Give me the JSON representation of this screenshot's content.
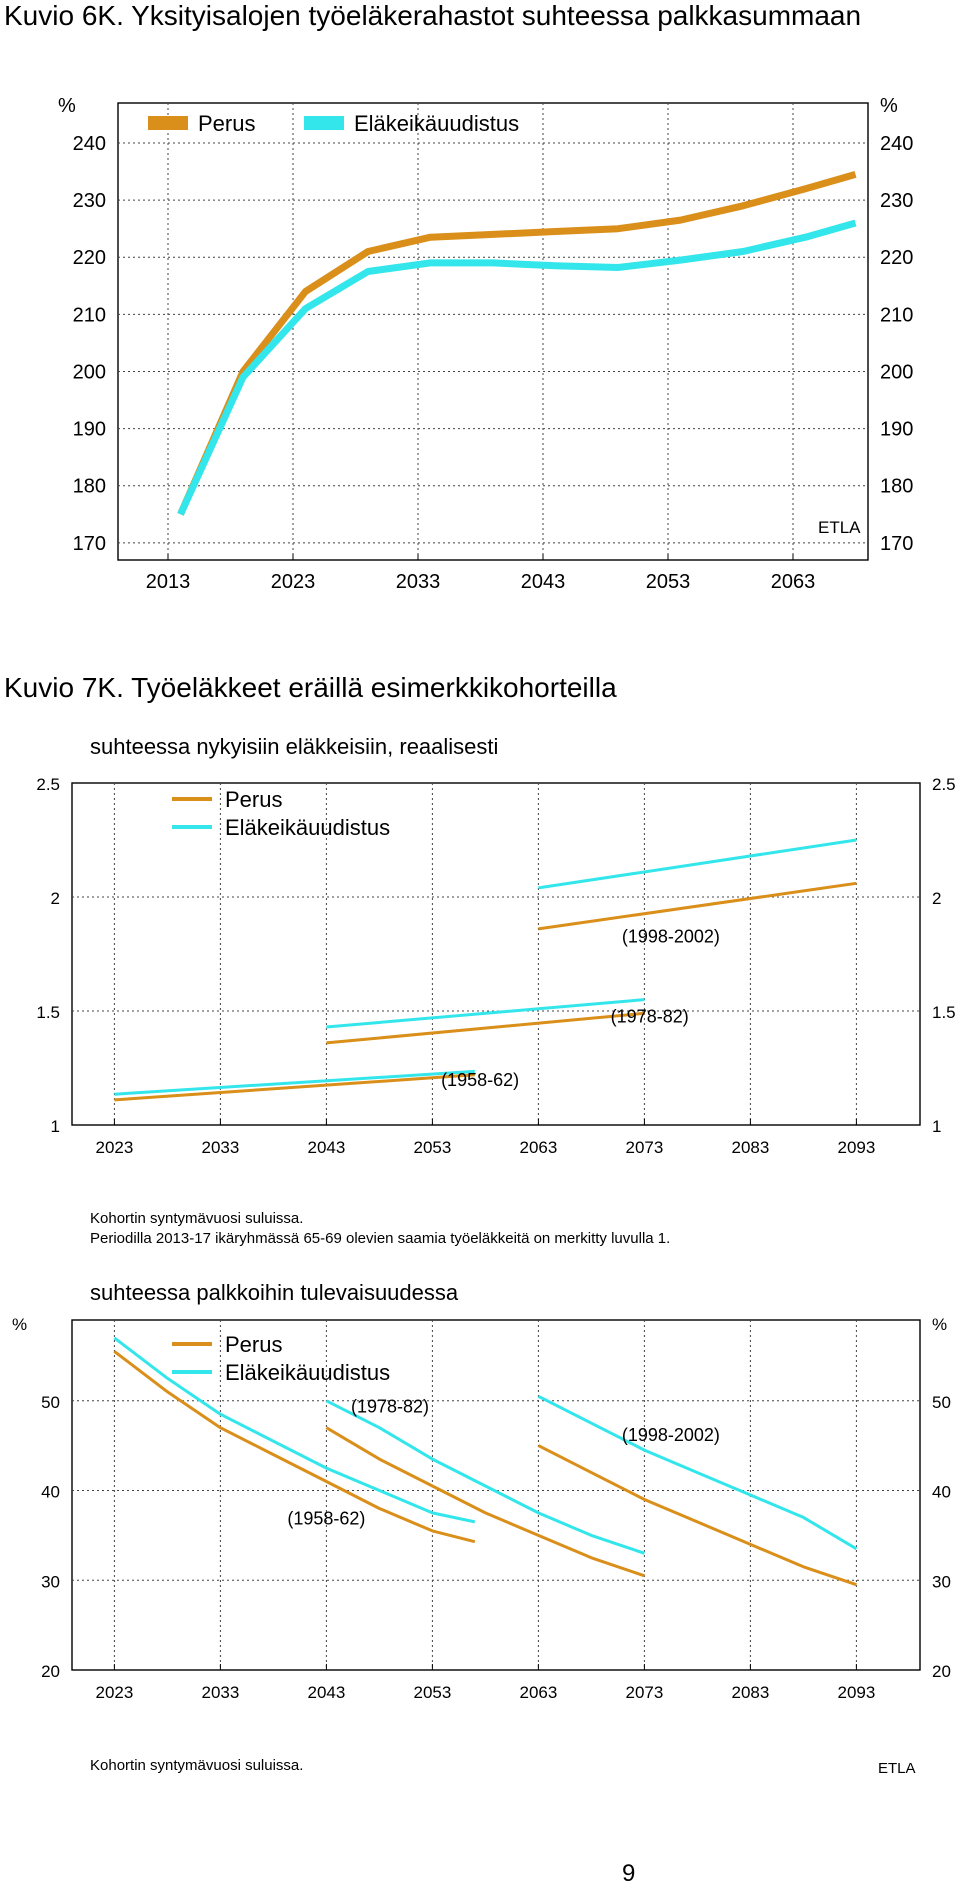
{
  "page_number": "9",
  "colors": {
    "perus": "#D98F1A",
    "reform": "#33E6EB",
    "grid": "#444444"
  },
  "chart_data": [
    {
      "id": "fig6",
      "type": "line",
      "title": "Kuvio 6K. Yksityisalojen työeläkerahastot suhteessa palkkasummaan",
      "subtitle": "",
      "ylabel_left": "%",
      "ylabel_right": "%",
      "ylim": [
        167,
        247
      ],
      "yticks": [
        170,
        180,
        190,
        200,
        210,
        220,
        230,
        240
      ],
      "xlim": [
        2009,
        2069
      ],
      "xticks": [
        2013,
        2023,
        2033,
        2043,
        2053,
        2063
      ],
      "grid": true,
      "legend": "top-left",
      "source": "ETLA",
      "series": [
        {
          "name": "Perus",
          "key": "perus",
          "width": 7,
          "segments": [
            [
              [
                2014,
                175
              ],
              [
                2019,
                200
              ],
              [
                2024,
                214
              ],
              [
                2029,
                221
              ],
              [
                2034,
                223.5
              ],
              [
                2039,
                224
              ],
              [
                2044,
                224.5
              ],
              [
                2049,
                225
              ],
              [
                2054,
                226.5
              ],
              [
                2059,
                229
              ],
              [
                2064,
                232
              ],
              [
                2068,
                234.5
              ]
            ]
          ]
        },
        {
          "name": "Eläkeikäuudistus",
          "key": "reform",
          "width": 7,
          "segments": [
            [
              [
                2014,
                175
              ],
              [
                2019,
                199
              ],
              [
                2024,
                211
              ],
              [
                2029,
                217.5
              ],
              [
                2034,
                219
              ],
              [
                2039,
                219
              ],
              [
                2044,
                218.5
              ],
              [
                2049,
                218.2
              ],
              [
                2054,
                219.5
              ],
              [
                2059,
                221
              ],
              [
                2064,
                223.5
              ],
              [
                2068,
                226
              ]
            ]
          ]
        }
      ]
    },
    {
      "id": "fig7a",
      "type": "line",
      "title": "Kuvio 7K. Työeläkkeet eräillä esimerkkikohorteilla",
      "subtitle": "suhteessa nykyisiin eläkkeisiin, reaalisesti",
      "ylabel_left": "",
      "ylabel_right": "",
      "ylim": [
        1,
        2.5
      ],
      "yticks": [
        1,
        1.5,
        2,
        2.5
      ],
      "ytick_labels": [
        "1",
        "1.5",
        "2",
        "2.5"
      ],
      "xlim": [
        2019,
        2099
      ],
      "xticks": [
        2023,
        2033,
        2043,
        2053,
        2063,
        2073,
        2083,
        2093
      ],
      "grid": true,
      "legend": "top-left",
      "series": [
        {
          "name": "Perus",
          "key": "perus",
          "width": 3,
          "segments": [
            [
              [
                2023,
                1.11
              ],
              [
                2057,
                1.22
              ]
            ],
            [
              [
                2043,
                1.36
              ],
              [
                2073,
                1.49
              ]
            ],
            [
              [
                2063,
                1.86
              ],
              [
                2093,
                2.06
              ]
            ]
          ]
        },
        {
          "name": "Eläkeikäuudistus",
          "key": "reform",
          "width": 3,
          "segments": [
            [
              [
                2023,
                1.135
              ],
              [
                2057,
                1.235
              ]
            ],
            [
              [
                2043,
                1.43
              ],
              [
                2073,
                1.55
              ]
            ],
            [
              [
                2063,
                2.04
              ],
              [
                2093,
                2.25
              ]
            ]
          ]
        }
      ],
      "annotations": [
        {
          "text": "(1958-62)",
          "x": 2057.5,
          "y": 1.17
        },
        {
          "text": "(1978-82)",
          "x": 2073.5,
          "y": 1.45
        },
        {
          "text": "(1998-2002)",
          "x": 2075.5,
          "y": 1.8
        }
      ],
      "notes": [
        "Kohortin syntymävuosi suluissa.",
        "Periodilla 2013-17 ikäryhmässä 65-69 olevien saamia työeläkkeitä on merkitty luvulla 1."
      ]
    },
    {
      "id": "fig7b",
      "type": "line",
      "title": "",
      "subtitle": "suhteessa palkkoihin tulevaisuudessa",
      "ylabel_left": "%",
      "ylabel_right": "%",
      "ylim": [
        20,
        59
      ],
      "yticks": [
        20,
        30,
        40,
        50
      ],
      "xlim": [
        2019,
        2099
      ],
      "xticks": [
        2023,
        2033,
        2043,
        2053,
        2063,
        2073,
        2083,
        2093
      ],
      "grid": true,
      "legend": "top-left",
      "series": [
        {
          "name": "Perus",
          "key": "perus",
          "width": 3,
          "segments": [
            [
              [
                2023,
                55.5
              ],
              [
                2028,
                51
              ],
              [
                2033,
                47
              ],
              [
                2038,
                44
              ],
              [
                2043,
                41
              ],
              [
                2048,
                38
              ],
              [
                2053,
                35.5
              ],
              [
                2057,
                34.3
              ]
            ],
            [
              [
                2043,
                47
              ],
              [
                2048,
                43.5
              ],
              [
                2053,
                40.5
              ],
              [
                2058,
                37.5
              ],
              [
                2063,
                35
              ],
              [
                2068,
                32.5
              ],
              [
                2073,
                30.5
              ]
            ],
            [
              [
                2063,
                45
              ],
              [
                2068,
                42
              ],
              [
                2073,
                39
              ],
              [
                2078,
                36.5
              ],
              [
                2083,
                34
              ],
              [
                2088,
                31.5
              ],
              [
                2093,
                29.5
              ]
            ]
          ]
        },
        {
          "name": "Eläkeikäuudistus",
          "key": "reform",
          "width": 3,
          "segments": [
            [
              [
                2023,
                57
              ],
              [
                2028,
                52.5
              ],
              [
                2033,
                48.5
              ],
              [
                2038,
                45.5
              ],
              [
                2043,
                42.5
              ],
              [
                2048,
                40
              ],
              [
                2053,
                37.5
              ],
              [
                2057,
                36.5
              ]
            ],
            [
              [
                2043,
                50
              ],
              [
                2048,
                47
              ],
              [
                2053,
                43.5
              ],
              [
                2058,
                40.5
              ],
              [
                2063,
                37.5
              ],
              [
                2068,
                35
              ],
              [
                2073,
                33
              ]
            ],
            [
              [
                2063,
                50.5
              ],
              [
                2068,
                47.5
              ],
              [
                2073,
                44.5
              ],
              [
                2078,
                42
              ],
              [
                2083,
                39.5
              ],
              [
                2088,
                37
              ],
              [
                2093,
                33.5
              ]
            ]
          ]
        }
      ],
      "annotations": [
        {
          "text": "(1978-82)",
          "x": 2049,
          "y": 48.7
        },
        {
          "text": "(1958-62)",
          "x": 2043,
          "y": 36.2
        },
        {
          "text": "(1998-2002)",
          "x": 2075.5,
          "y": 45.5
        }
      ],
      "notes": [
        "Kohortin syntymävuosi suluissa."
      ],
      "source": "ETLA"
    }
  ]
}
